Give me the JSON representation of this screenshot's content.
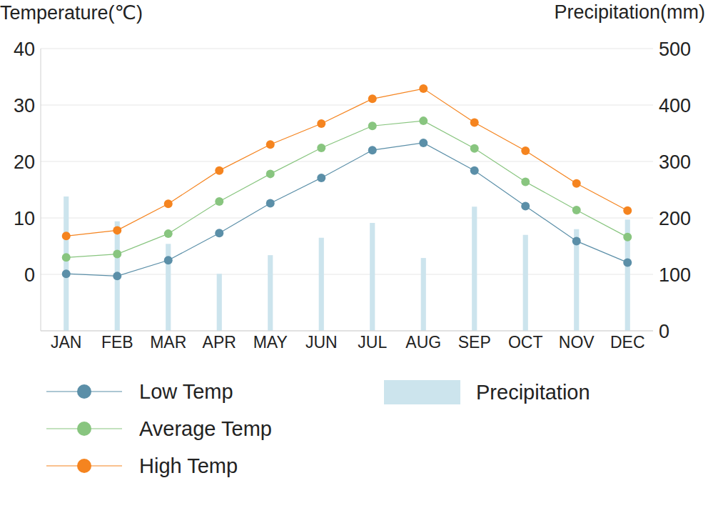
{
  "chart_data": {
    "type": "combo",
    "y_label": "Temperature(℃)",
    "y2_label": "Precipitation(mm)",
    "categories": [
      "JAN",
      "FEB",
      "MAR",
      "APR",
      "MAY",
      "JUN",
      "JUL",
      "AUG",
      "SEP",
      "OCT",
      "NOV",
      "DEC"
    ],
    "series": [
      {
        "name": "Low Temp",
        "type": "line",
        "color": "#5b8fa8",
        "marker": "circle",
        "values": [
          0.1,
          -0.3,
          2.5,
          7.3,
          12.6,
          17.1,
          22.0,
          23.3,
          18.4,
          12.1,
          5.9,
          2.1
        ]
      },
      {
        "name": "Average Temp",
        "type": "line",
        "color": "#88c57f",
        "marker": "circle",
        "values": [
          3.0,
          3.6,
          7.2,
          12.9,
          17.8,
          22.4,
          26.3,
          27.2,
          22.3,
          16.4,
          11.4,
          6.6
        ]
      },
      {
        "name": "High Temp",
        "type": "line",
        "color": "#f5841f",
        "marker": "circle",
        "values": [
          6.8,
          7.8,
          12.5,
          18.4,
          23.0,
          26.7,
          31.1,
          32.9,
          26.9,
          21.9,
          16.1,
          11.3
        ]
      },
      {
        "name": "Precipitation",
        "type": "bar",
        "axis": "y2",
        "color": "#cce4ed",
        "values": [
          238,
          194,
          154,
          101,
          134,
          165,
          191,
          129,
          220,
          170,
          180,
          197
        ]
      }
    ],
    "ylim": [
      -10,
      40
    ],
    "yticks": [
      0,
      10,
      20,
      30,
      40
    ],
    "y2lim": [
      0,
      500
    ],
    "y2ticks": [
      0,
      100,
      200,
      300,
      400,
      500
    ],
    "grid": true,
    "legend": "bottom"
  }
}
